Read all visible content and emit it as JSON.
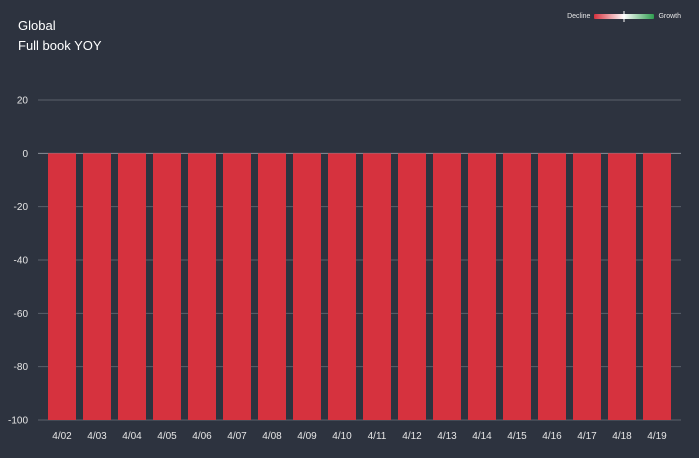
{
  "header": {
    "title_line1": "Global",
    "title_line2": "Full book YOY"
  },
  "legend": {
    "left_label": "Decline",
    "right_label": "Growth",
    "negative_color": "#d6323e",
    "positive_color": "#2e9e4f"
  },
  "colors": {
    "background": "#2d333f",
    "bar": "#d6323e",
    "grid": "#5a606b",
    "zero_line": "#8a8f98"
  },
  "chart_data": {
    "type": "bar",
    "categories": [
      "4/02",
      "4/03",
      "4/04",
      "4/05",
      "4/06",
      "4/07",
      "4/08",
      "4/09",
      "4/10",
      "4/11",
      "4/12",
      "4/13",
      "4/14",
      "4/15",
      "4/16",
      "4/17",
      "4/18",
      "4/19"
    ],
    "values": [
      -100,
      -100,
      -100,
      -100,
      -100,
      -100,
      -100,
      -100,
      -100,
      -100,
      -100,
      -100,
      -100,
      -100,
      -100,
      -100,
      -100,
      -100
    ],
    "ylim": [
      -100,
      20
    ],
    "yticks": [
      20,
      0,
      -20,
      -40,
      -60,
      -80,
      -100
    ],
    "grid": true
  }
}
